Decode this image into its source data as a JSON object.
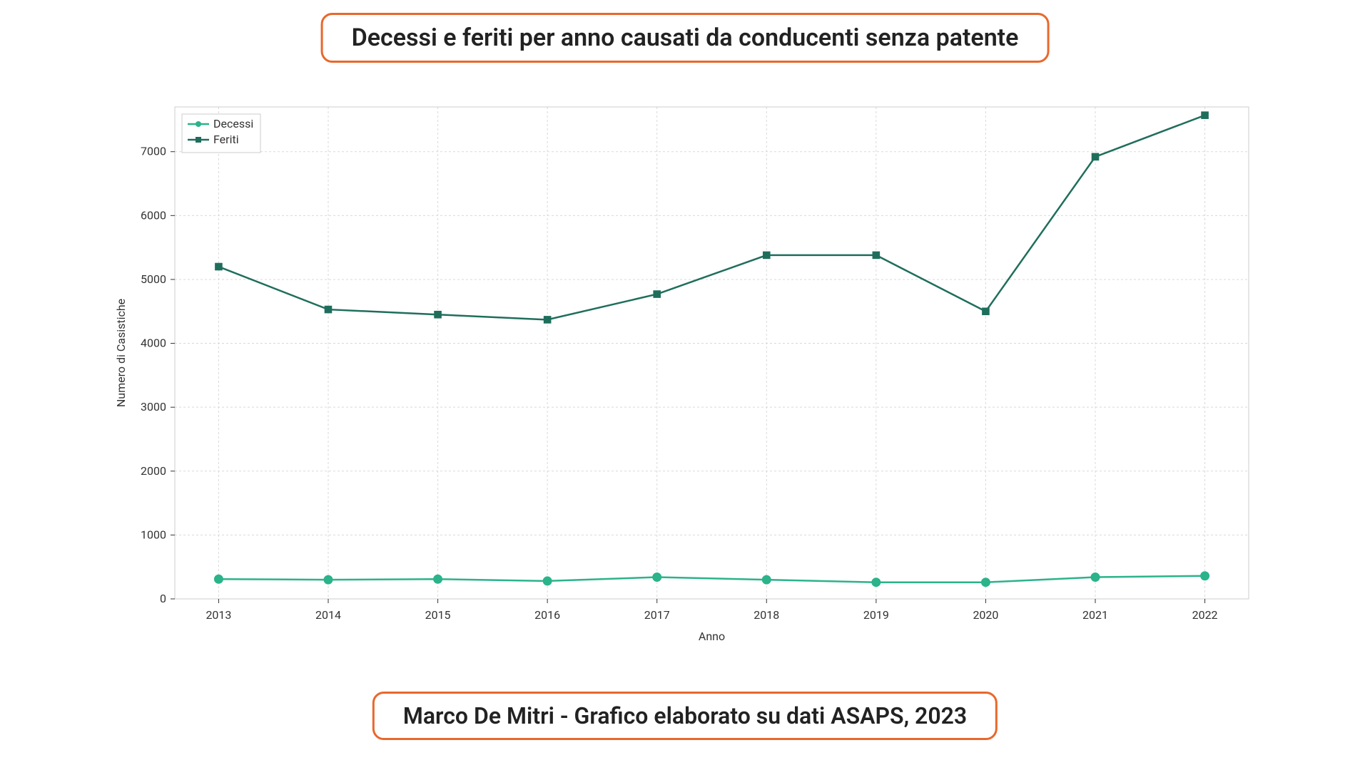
{
  "title": "Decessi e feriti per anno causati da conducenti senza patente",
  "footer": "Marco De Mitri - Grafico elaborato su dati ASAPS, 2023",
  "title_border_color": "#e8682c",
  "title_border_radius": 16,
  "title_fontsize": 34,
  "footer_fontsize": 32,
  "chart": {
    "type": "line",
    "background_color": "#ffffff",
    "plot_border_color": "#cccccc",
    "grid_color": "#d9d9d9",
    "grid_dash": "3,3",
    "xlabel": "Anno",
    "ylabel": "Numero di Casistiche",
    "label_fontsize": 16,
    "tick_fontsize": 16,
    "x_categories": [
      "2013",
      "2014",
      "2015",
      "2016",
      "2017",
      "2018",
      "2019",
      "2020",
      "2021",
      "2022"
    ],
    "ylim": [
      0,
      7700
    ],
    "ytick_start": 0,
    "ytick_step": 1000,
    "ytick_count": 8,
    "series": [
      {
        "name": "Decessi",
        "color": "#2bb38a",
        "marker": "circle",
        "marker_size": 6,
        "line_width": 2.5,
        "values": [
          310,
          300,
          310,
          280,
          340,
          300,
          260,
          260,
          340,
          360
        ]
      },
      {
        "name": "Feriti",
        "color": "#1f6e5c",
        "marker": "square",
        "marker_size": 6,
        "line_width": 2.5,
        "values": [
          5200,
          4530,
          4450,
          4370,
          4770,
          5380,
          5380,
          4500,
          6920,
          7570
        ]
      }
    ],
    "legend": {
      "position": "upper-left",
      "border_color": "#cccccc",
      "background": "#ffffff",
      "fontsize": 16
    }
  }
}
